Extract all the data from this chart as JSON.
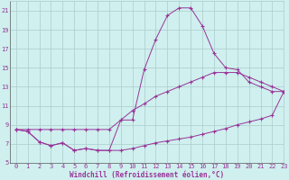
{
  "xlabel": "Windchill (Refroidissement éolien,°C)",
  "background_color": "#cff0ee",
  "grid_color": "#aacccc",
  "line_color": "#993399",
  "x_hours": [
    0,
    1,
    2,
    3,
    4,
    5,
    6,
    7,
    8,
    9,
    10,
    11,
    12,
    13,
    14,
    15,
    16,
    17,
    18,
    19,
    20,
    21,
    22,
    23
  ],
  "temp_line": [
    8.5,
    8.3,
    7.2,
    6.8,
    7.1,
    6.3,
    6.5,
    6.3,
    6.3,
    9.5,
    9.5,
    14.8,
    18.0,
    20.5,
    21.3,
    21.3,
    19.4,
    16.5,
    15.0,
    14.8,
    13.5,
    13.0,
    12.5,
    12.5
  ],
  "min_line": [
    8.5,
    8.3,
    7.2,
    6.8,
    7.1,
    6.3,
    6.5,
    6.3,
    6.3,
    6.3,
    6.5,
    6.8,
    7.1,
    7.3,
    7.5,
    7.7,
    8.0,
    8.3,
    8.6,
    9.0,
    9.3,
    9.6,
    10.0,
    12.5
  ],
  "max_line": [
    8.5,
    8.5,
    8.5,
    8.5,
    8.5,
    8.5,
    8.5,
    8.5,
    8.5,
    9.5,
    10.5,
    11.2,
    12.0,
    12.5,
    13.0,
    13.5,
    14.0,
    14.5,
    14.5,
    14.5,
    14.0,
    13.5,
    13.0,
    12.5
  ],
  "ylim": [
    5,
    22
  ],
  "xlim": [
    -0.5,
    23
  ],
  "yticks": [
    5,
    7,
    9,
    11,
    13,
    15,
    17,
    19,
    21
  ],
  "xticks": [
    0,
    1,
    2,
    3,
    4,
    5,
    6,
    7,
    8,
    9,
    10,
    11,
    12,
    13,
    14,
    15,
    16,
    17,
    18,
    19,
    20,
    21,
    22,
    23
  ],
  "figsize": [
    3.2,
    2.0
  ],
  "dpi": 100
}
